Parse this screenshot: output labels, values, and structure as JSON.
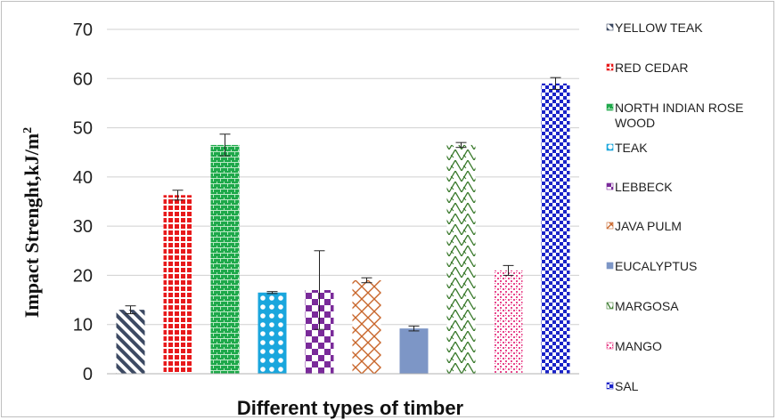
{
  "chart_data": {
    "type": "bar",
    "xlabel": "Different types of timber",
    "ylabel_main": "Impact Strenght,kJ/m",
    "ylabel_sup": "2",
    "ylim": [
      0,
      70
    ],
    "yticks": [
      0,
      10,
      20,
      30,
      40,
      50,
      60,
      70
    ],
    "grid": "horizontal",
    "legend_position": "right",
    "series": [
      {
        "name": "YELLOW TEAK",
        "value": 13,
        "error": 0.8,
        "color": "#3d4a63",
        "pattern": "diag-stripes"
      },
      {
        "name": "RED CEDAR",
        "value": 36.3,
        "error": 1.0,
        "color": "#e8191b",
        "pattern": "dots"
      },
      {
        "name": "NORTH INDIAN ROSE WOOD",
        "value": 46.5,
        "error": 2.2,
        "color": "#1ea84a",
        "pattern": "bricks"
      },
      {
        "name": "TEAK",
        "value": 16.5,
        "error": 0.2,
        "color": "#1aa6dd",
        "pattern": "circles"
      },
      {
        "name": "LEBBECK",
        "value": 17,
        "error": 8.0,
        "color": "#7a2a9a",
        "pattern": "checker"
      },
      {
        "name": "JAVA PULM",
        "value": 19,
        "error": 0.5,
        "color": "#c8662b",
        "pattern": "lattice"
      },
      {
        "name": "EUCALYPTUS",
        "value": 9.2,
        "error": 0.5,
        "color": "#7d96c6",
        "pattern": "solid"
      },
      {
        "name": "MARGOSA",
        "value": 46.5,
        "error": 0.5,
        "color": "#3a7a2c",
        "pattern": "zigzag"
      },
      {
        "name": "MANGO",
        "value": 21,
        "error": 1.0,
        "color": "#e8478c",
        "pattern": "dense-dots"
      },
      {
        "name": "SAL",
        "value": 59,
        "error": 1.2,
        "color": "#1a23c8",
        "pattern": "checker-fine"
      }
    ]
  }
}
